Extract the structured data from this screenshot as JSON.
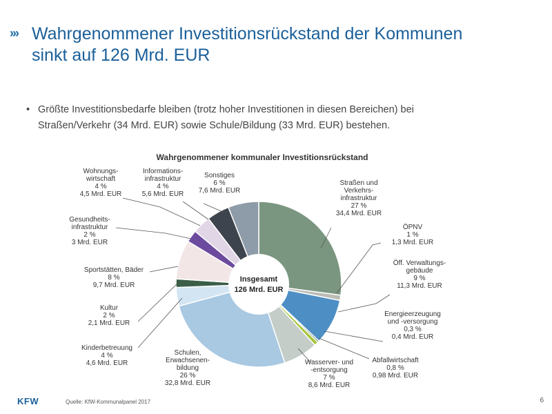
{
  "header": {
    "marker": "›››",
    "title_line1": "Wahrgenommener Investitionsrückstand der Kommunen",
    "title_line2": "sinkt auf 126 Mrd. EUR"
  },
  "bullet": {
    "dot": "•",
    "line1": "Größte Investitionsbedarfe bleiben (trotz hoher Investitionen in diesen Bereichen) bei",
    "line2": "Straßen/Verkehr (34 Mrd. EUR) sowie Schule/Bildung (33 Mrd. EUR) bestehen."
  },
  "chart_data": {
    "type": "pie",
    "title": "Wahrgenommener kommunaler Investitionsrückstand",
    "unit": "Mrd. EUR",
    "center_label": [
      "Insgesamt",
      "126 Mrd. EUR"
    ],
    "slices": [
      {
        "name": "Straßen und Verkehrsinfrastruktur",
        "label_lines": [
          "Straßen und",
          "Verkehrs-",
          "infrastruktur"
        ],
        "percent_label": "27 %",
        "amount_label": "34,4 Mrd. EUR",
        "value": 34.4,
        "color": "#7a9680"
      },
      {
        "name": "ÖPNV",
        "label_lines": [
          "ÖPNV"
        ],
        "percent_label": "1 %",
        "amount_label": "1,3 Mrd. EUR",
        "value": 1.3,
        "color": "#bbbcb5"
      },
      {
        "name": "Öff. Verwaltungsgebäude",
        "label_lines": [
          "Öff. Verwaltungs-",
          "gebäude"
        ],
        "percent_label": "9 %",
        "amount_label": "11,3 Mrd. EUR",
        "value": 11.3,
        "color": "#4d8fc4"
      },
      {
        "name": "Energieerzeugung und -versorgung",
        "label_lines": [
          "Energieerzeugung",
          "und -versorgung"
        ],
        "percent_label": "0,3 %",
        "amount_label": "0,4 Mrd. EUR",
        "value": 0.4,
        "color": "#3d6e46"
      },
      {
        "name": "Abfallwirtschaft",
        "label_lines": [
          "Abfallwirtschaft"
        ],
        "percent_label": "0,8 %",
        "amount_label": "0,98 Mrd. EUR",
        "value": 0.98,
        "color": "#a7c43a"
      },
      {
        "name": "Wasserver- und -entsorgung",
        "label_lines": [
          "Wasserver- und",
          "-entsorgung"
        ],
        "percent_label": "7 %",
        "amount_label": "8,6 Mrd. EUR",
        "value": 8.6,
        "color": "#c4cdc8"
      },
      {
        "name": "Schulen, Erwachsenenbildung",
        "label_lines": [
          "Schulen,",
          "Erwachsenen-",
          "bildung"
        ],
        "percent_label": "26 %",
        "amount_label": "32,8 Mrd. EUR",
        "value": 32.8,
        "color": "#a9c8e2"
      },
      {
        "name": "Kinderbetreuung",
        "label_lines": [
          "Kinderbetreuung"
        ],
        "percent_label": "4 %",
        "amount_label": "4,6 Mrd. EUR",
        "value": 4.6,
        "color": "#d3e5f2"
      },
      {
        "name": "Kultur",
        "label_lines": [
          "Kultur"
        ],
        "percent_label": "2 %",
        "amount_label": "2,1 Mrd. EUR",
        "value": 2.1,
        "color": "#3a5e48"
      },
      {
        "name": "Sportstätten, Bäder",
        "label_lines": [
          "Sportstätten, Bäder"
        ],
        "percent_label": "8 %",
        "amount_label": "9,7 Mrd. EUR",
        "value": 9.7,
        "color": "#f2e6e6"
      },
      {
        "name": "Gesundheitsinfrastruktur",
        "label_lines": [
          "Gesundheits-",
          "infrastruktur"
        ],
        "percent_label": "2 %",
        "amount_label": "3 Mrd. EUR",
        "value": 3.0,
        "color": "#6c4b9e"
      },
      {
        "name": "Wohnungswirtschaft",
        "label_lines": [
          "Wohnungs-",
          "wirtschaft"
        ],
        "percent_label": "4 %",
        "amount_label": "4,5 Mrd. EUR",
        "value": 4.5,
        "color": "#e0d6e6"
      },
      {
        "name": "Informationsinfrastruktur",
        "label_lines": [
          "Informations-",
          "infrastruktur"
        ],
        "percent_label": "4 %",
        "amount_label": "5,6 Mrd. EUR",
        "value": 5.6,
        "color": "#3e444d"
      },
      {
        "name": "Sonstiges",
        "label_lines": [
          "Sonstiges"
        ],
        "percent_label": "6 %",
        "amount_label": "7,6 Mrd. EUR",
        "value": 7.6,
        "color": "#8e9ba8"
      }
    ]
  },
  "footer": {
    "logo": "KFW",
    "source": "Quelle: KfW-Kommunalpanel 2017",
    "page_number": "6"
  }
}
